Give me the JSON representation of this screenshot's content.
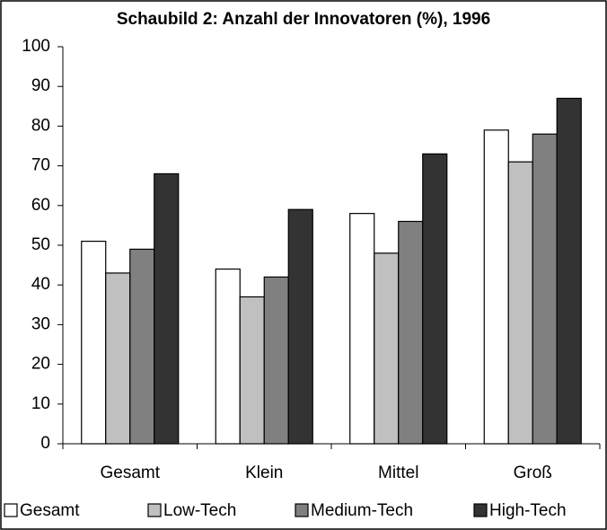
{
  "chart_data": {
    "type": "bar",
    "title": "Schaubild 2: Anzahl der Innovatoren (%), 1996",
    "categories": [
      "Gesamt",
      "Klein",
      "Mittel",
      "Groß"
    ],
    "series": [
      {
        "name": "Gesamt",
        "color": "#ffffff",
        "values": [
          51,
          44,
          58,
          79
        ]
      },
      {
        "name": "Low-Tech",
        "color": "#c0c0c0",
        "values": [
          43,
          37,
          48,
          71
        ]
      },
      {
        "name": "Medium-Tech",
        "color": "#808080",
        "values": [
          49,
          42,
          56,
          78
        ]
      },
      {
        "name": "High-Tech",
        "color": "#333333",
        "values": [
          68,
          59,
          73,
          87
        ]
      }
    ],
    "ylim": [
      0,
      100
    ],
    "yticks": [
      0,
      10,
      20,
      30,
      40,
      50,
      60,
      70,
      80,
      90,
      100
    ],
    "grid": false,
    "legend": "bottom"
  }
}
